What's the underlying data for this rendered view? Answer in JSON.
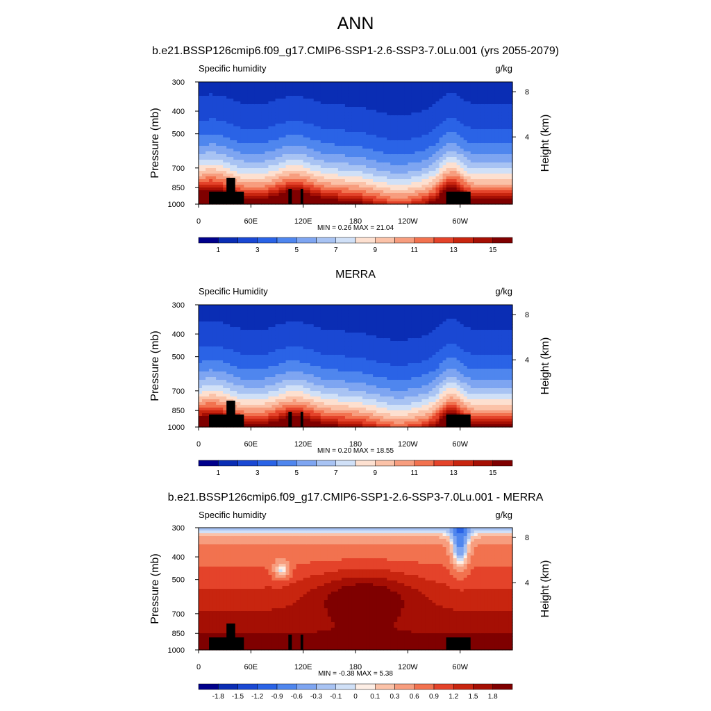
{
  "page_title": "ANN",
  "chart_data": [
    {
      "type": "contour",
      "title": "b.e21.BSSP126cmip6.f09_g17.CMIP6-SSP1-2.6-SSP3-7.0Lu.001 (yrs 2055-2079)",
      "left_label": "Specific humidity",
      "right_label": "g/kg",
      "ylabel": "Pressure (mb)",
      "ylabel_right": "Height (km)",
      "y_ticks": [
        "300",
        "400",
        "500",
        "700",
        "850",
        "1000"
      ],
      "y_right_ticks": [
        "8",
        "4"
      ],
      "x_ticks": [
        "0",
        "60E",
        "120E",
        "180",
        "120W",
        "60W"
      ],
      "stats": "MIN =   0.26  MAX =  21.04",
      "colorbar_labels": [
        "1",
        "3",
        "5",
        "7",
        "9",
        "11",
        "13",
        "15"
      ],
      "levels": [
        0,
        1,
        2,
        3,
        4,
        5,
        6,
        7,
        8,
        9,
        10,
        11,
        12,
        13,
        14,
        15
      ],
      "colors": [
        "#00008b",
        "#0a2db4",
        "#1a48d3",
        "#2a63e6",
        "#4f86ee",
        "#7ea5f1",
        "#a8c3f3",
        "#d0e0f7",
        "#fde0d0",
        "#fbc2a8",
        "#f79d7e",
        "#f2724f",
        "#e4432a",
        "#c8250f",
        "#a50f04",
        "#7f0000"
      ]
    },
    {
      "type": "contour",
      "title": "MERRA",
      "left_label": "Specific Humidity",
      "right_label": "g/kg",
      "ylabel": "Pressure (mb)",
      "ylabel_right": "Height (km)",
      "y_ticks": [
        "300",
        "400",
        "500",
        "700",
        "850",
        "1000"
      ],
      "y_right_ticks": [
        "8",
        "4"
      ],
      "x_ticks": [
        "0",
        "60E",
        "120E",
        "180",
        "120W",
        "60W"
      ],
      "stats": "MIN =   0.20  MAX =  18.55",
      "colorbar_labels": [
        "1",
        "3",
        "5",
        "7",
        "9",
        "11",
        "13",
        "15"
      ],
      "levels": [
        0,
        1,
        2,
        3,
        4,
        5,
        6,
        7,
        8,
        9,
        10,
        11,
        12,
        13,
        14,
        15
      ],
      "colors": [
        "#00008b",
        "#0a2db4",
        "#1a48d3",
        "#2a63e6",
        "#4f86ee",
        "#7ea5f1",
        "#a8c3f3",
        "#d0e0f7",
        "#fde0d0",
        "#fbc2a8",
        "#f79d7e",
        "#f2724f",
        "#e4432a",
        "#c8250f",
        "#a50f04",
        "#7f0000"
      ]
    },
    {
      "type": "contour",
      "title": "b.e21.BSSP126cmip6.f09_g17.CMIP6-SSP1-2.6-SSP3-7.0Lu.001 - MERRA",
      "left_label": "Specific humidity",
      "right_label": "g/kg",
      "ylabel": "Pressure (mb)",
      "ylabel_right": "Height (km)",
      "y_ticks": [
        "300",
        "400",
        "500",
        "700",
        "850",
        "1000"
      ],
      "y_right_ticks": [
        "8",
        "4"
      ],
      "x_ticks": [
        "0",
        "60E",
        "120E",
        "180",
        "120W",
        "60W"
      ],
      "stats": "MIN =  -0.38  MAX =   5.38",
      "colorbar_labels": [
        "-1.8",
        "-1.5",
        "-1.2",
        "-0.9",
        "-0.6",
        "-0.3",
        "-0.1",
        "0",
        "0.1",
        "0.3",
        "0.6",
        "0.9",
        "1.2",
        "1.5",
        "1.8"
      ],
      "levels": [
        -1.8,
        -1.5,
        -1.2,
        -0.9,
        -0.6,
        -0.3,
        -0.1,
        0,
        0.1,
        0.3,
        0.6,
        0.9,
        1.2,
        1.5,
        1.8
      ],
      "colors": [
        "#00008b",
        "#0a2db4",
        "#1a48d3",
        "#2a63e6",
        "#4f86ee",
        "#7ea5f1",
        "#a8c3f3",
        "#d0e0f7",
        "#fdeee5",
        "#fbc2a8",
        "#f79d7e",
        "#f2724f",
        "#e4432a",
        "#c8250f",
        "#a50f04",
        "#7f0000"
      ]
    }
  ]
}
